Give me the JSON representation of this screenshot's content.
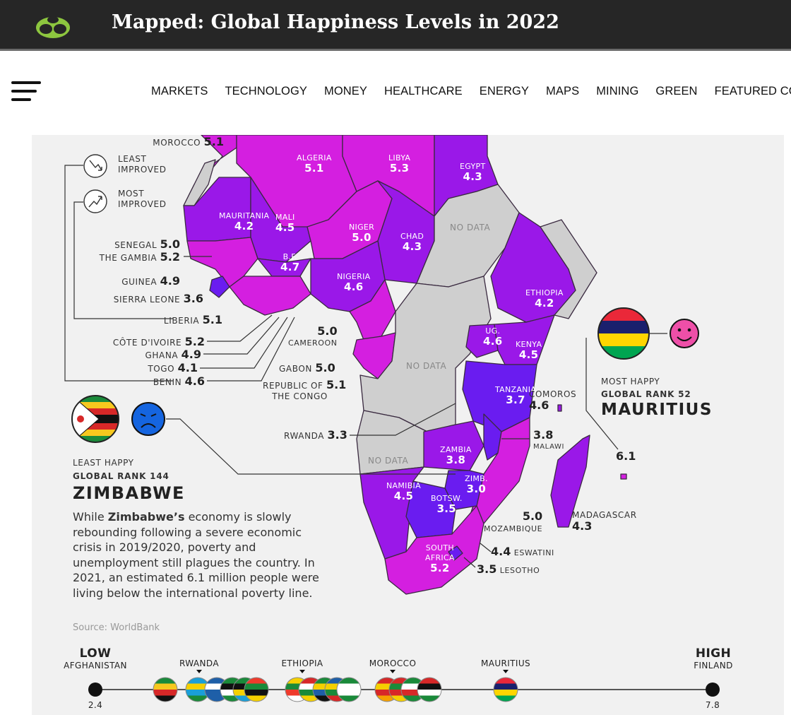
{
  "header": {
    "title": "Mapped: Global Happiness Levels in 2022"
  },
  "nav": {
    "items": [
      "MARKETS",
      "TECHNOLOGY",
      "MONEY",
      "HEALTHCARE",
      "ENERGY",
      "MAPS",
      "MINING",
      "GREEN",
      "FEATURED COM"
    ]
  },
  "legend": {
    "least_improved": [
      "LEAST",
      "IMPROVED"
    ],
    "most_improved": [
      "MOST",
      "IMPROVED"
    ]
  },
  "west_labels": [
    {
      "name": "MOROCCO",
      "value": "5.1"
    },
    {
      "name": "SENEGAL",
      "value": "5.0"
    },
    {
      "name": "THE GAMBIA",
      "value": "5.2"
    },
    {
      "name": "GUINEA",
      "value": "4.9"
    },
    {
      "name": "SIERRA LEONE",
      "value": "3.6"
    },
    {
      "name": "LIBERIA",
      "value": "5.1"
    },
    {
      "name": "CÔTE D'IVOIRE",
      "value": "5.2"
    },
    {
      "name": "GHANA",
      "value": "4.9"
    },
    {
      "name": "TOGO",
      "value": "4.1"
    },
    {
      "name": "BENIN",
      "value": "4.6"
    }
  ],
  "map_labels": [
    {
      "name": "ALGERIA",
      "value": "5.1"
    },
    {
      "name": "LIBYA",
      "value": "5.3"
    },
    {
      "name": "EGYPT",
      "value": "4.3"
    },
    {
      "name": "MAURITANIA",
      "value": "4.2"
    },
    {
      "name": "MALI",
      "value": "4.5"
    },
    {
      "name": "NIGER",
      "value": "5.0"
    },
    {
      "name": "CHAD",
      "value": "4.3"
    },
    {
      "name": "B.F.",
      "value": "4.7"
    },
    {
      "name": "NIGERIA",
      "value": "4.6"
    },
    {
      "name": "ETHIOPIA",
      "value": "4.2"
    },
    {
      "name": "UG.",
      "value": "4.6"
    },
    {
      "name": "KENYA",
      "value": "4.5"
    },
    {
      "name": "TANZANIA",
      "value": "3.7"
    },
    {
      "name": "ZAMBIA",
      "value": "3.8"
    },
    {
      "name": "ZIMB.",
      "value": "3.0"
    },
    {
      "name": "NAMIBIA",
      "value": "4.5"
    },
    {
      "name": "BOTSW.",
      "value": "3.5"
    },
    {
      "name": "SOUTH AFRICA",
      "value": "5.2"
    }
  ],
  "outside_labels": [
    {
      "name": "CAMEROON",
      "value": "5.0"
    },
    {
      "name": "GABON",
      "value": "5.0"
    },
    {
      "name": "REPUBLIC OF THE CONGO",
      "value": "5.1"
    },
    {
      "name": "RWANDA",
      "value": "3.3"
    },
    {
      "name": "COMOROS",
      "value": "4.6"
    },
    {
      "name": "MALAWI",
      "value": "3.8"
    },
    {
      "name": "MOZAMBIQUE",
      "value": "5.0"
    },
    {
      "name": "ESWATINI",
      "value": "4.4"
    },
    {
      "name": "LESOTHO",
      "value": "3.5"
    },
    {
      "name": "MADAGASCAR",
      "value": "4.3"
    },
    {
      "name": "MAURITIUS_DOT",
      "value": "6.1"
    }
  ],
  "no_data": "NO DATA",
  "most_happy": {
    "line1": "MOST HAPPY",
    "line2": "GLOBAL RANK 52",
    "country": "MAURITIUS"
  },
  "least_happy": {
    "line1": "LEAST HAPPY",
    "line2": "GLOBAL RANK 144",
    "country": "ZIMBABWE"
  },
  "paragraph": {
    "pre": "While ",
    "bold": "Zimbabwe’s",
    "post": " economy is slowly rebounding following a severe economic crisis in 2019/2020, poverty and unemployment still plagues the country. In 2021, an estimated 6.1 million people were living below the international poverty line."
  },
  "source": "Source: WorldBank",
  "scale": {
    "low": "LOW",
    "low_country": "AFGHANISTAN",
    "low_value": "2.4",
    "high": "HIGH",
    "high_country": "FINLAND",
    "high_value": "7.8",
    "markers": [
      "RWANDA",
      "ETHIOPIA",
      "MOROCCO",
      "MAURITIUS"
    ]
  },
  "colors": {
    "bar": "#262626",
    "land_purple": "#9a18e8",
    "land_magenta": "#d41fe0",
    "land_blue": "#6a1cf0",
    "no_data": "#cfcfcf",
    "face_happy": "#ee4fa8",
    "face_sad": "#1565e0"
  }
}
